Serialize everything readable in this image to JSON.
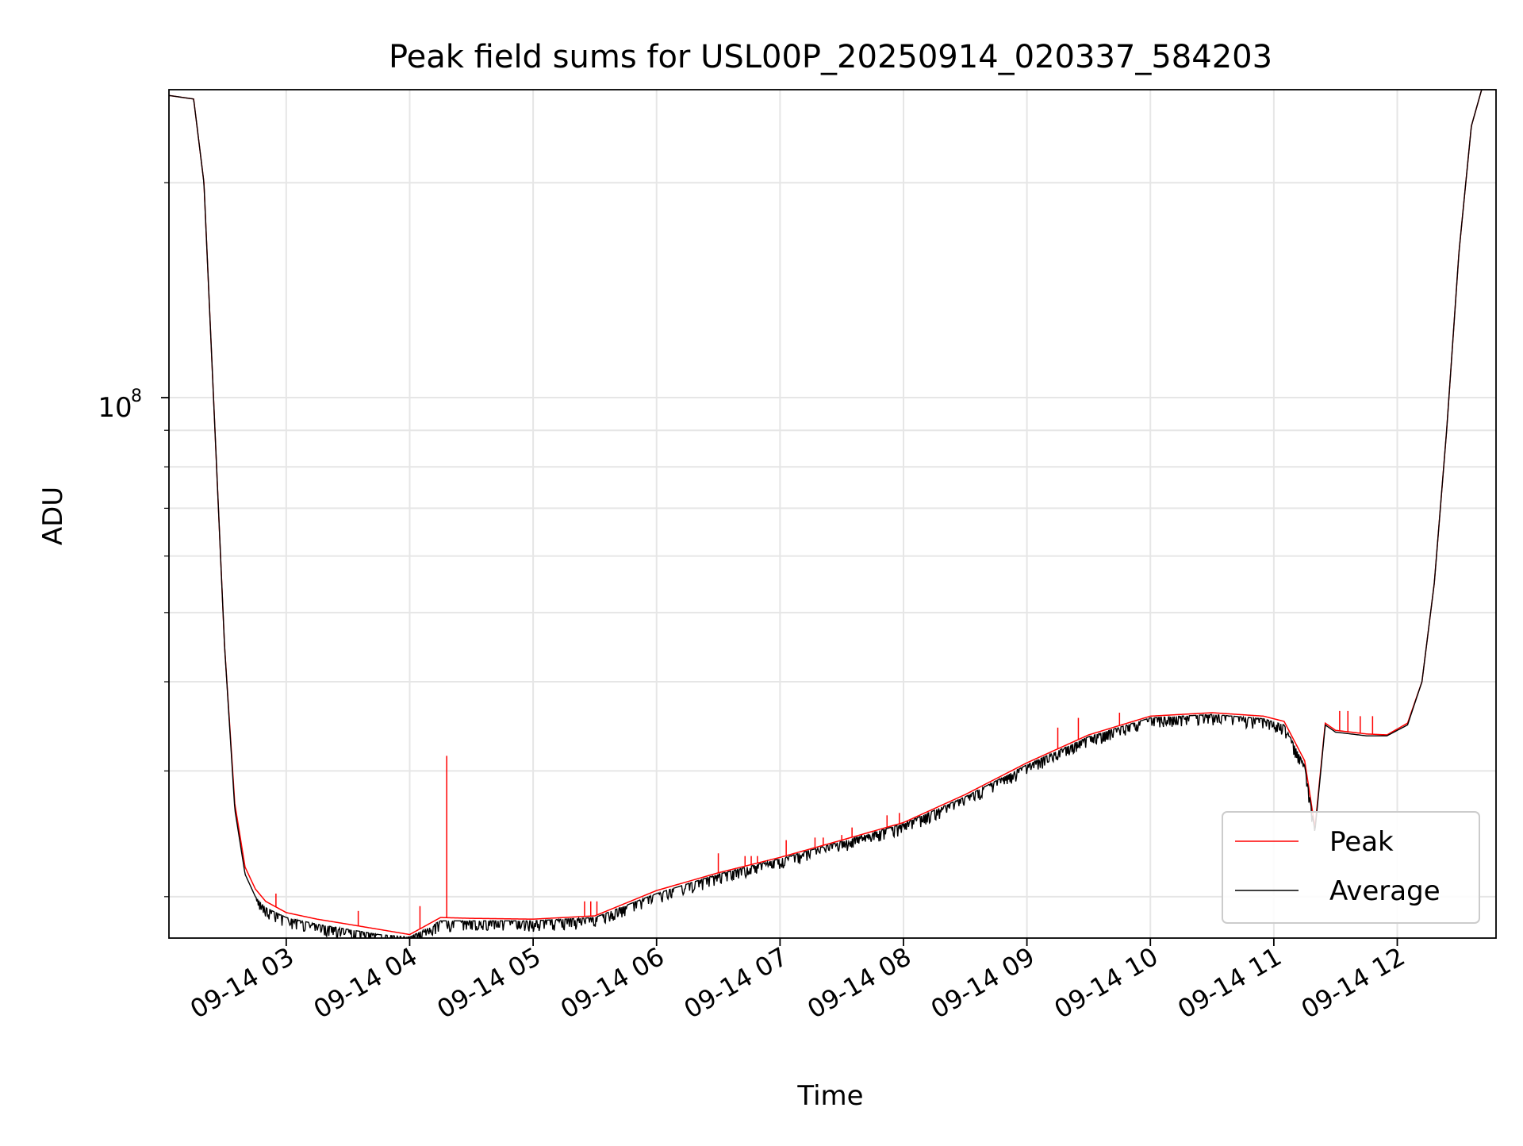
{
  "chart_data": {
    "type": "line",
    "title": "Peak field sums for USL00P_20250914_020337_584203",
    "xlabel": "Time",
    "ylabel": "ADU",
    "y_scale": "log",
    "ylim": [
      17500000,
      270000000
    ],
    "xlim": [
      "2025-09-14 02:03",
      "2025-09-14 12:48"
    ],
    "x_ticks": [
      "09-14 03",
      "09-14 04",
      "09-14 05",
      "09-14 06",
      "09-14 07",
      "09-14 08",
      "09-14 09",
      "09-14 10",
      "09-14 11",
      "09-14 12"
    ],
    "y_tick_major_label": "10",
    "y_tick_major_exp": "8",
    "y_tick_major_value": 100000000,
    "y_minor_ticks": [
      20000000,
      30000000,
      40000000,
      50000000,
      60000000,
      70000000,
      80000000,
      90000000,
      200000000
    ],
    "grid": true,
    "legend_position": "lower right",
    "series": [
      {
        "name": "Peak",
        "color": "#ff0000",
        "x": [
          "2025-09-14 02:03",
          "2025-09-14 02:15",
          "2025-09-14 02:20",
          "2025-09-14 02:25",
          "2025-09-14 02:30",
          "2025-09-14 02:35",
          "2025-09-14 02:40",
          "2025-09-14 02:45",
          "2025-09-14 02:50",
          "2025-09-14 03:00",
          "2025-09-14 03:15",
          "2025-09-14 03:30",
          "2025-09-14 03:45",
          "2025-09-14 04:00",
          "2025-09-14 04:15",
          "2025-09-14 04:30",
          "2025-09-14 05:00",
          "2025-09-14 05:30",
          "2025-09-14 06:00",
          "2025-09-14 06:30",
          "2025-09-14 07:00",
          "2025-09-14 07:30",
          "2025-09-14 08:00",
          "2025-09-14 08:30",
          "2025-09-14 09:00",
          "2025-09-14 09:30",
          "2025-09-14 10:00",
          "2025-09-14 10:30",
          "2025-09-14 10:55",
          "2025-09-14 11:05",
          "2025-09-14 11:15",
          "2025-09-14 11:20",
          "2025-09-14 11:25",
          "2025-09-14 11:30",
          "2025-09-14 11:45",
          "2025-09-14 11:55",
          "2025-09-14 12:05",
          "2025-09-14 12:12",
          "2025-09-14 12:18",
          "2025-09-14 12:24",
          "2025-09-14 12:30",
          "2025-09-14 12:36",
          "2025-09-14 12:41",
          "2025-09-14 12:48"
        ],
        "values": [
          265000000,
          262000000,
          200000000,
          95000000,
          45000000,
          27000000,
          22000000,
          20500000,
          19700000,
          19000000,
          18600000,
          18300000,
          18000000,
          17700000,
          18700000,
          18650000,
          18600000,
          18800000,
          20400000,
          21600000,
          22700000,
          24000000,
          25400000,
          27800000,
          30800000,
          33700000,
          35800000,
          36200000,
          35800000,
          35200000,
          31000000,
          25000000,
          35000000,
          34200000,
          33800000,
          33700000,
          35000000,
          40000000,
          55000000,
          90000000,
          160000000,
          240000000,
          270000000,
          270000000
        ],
        "spikes": [
          {
            "x": "2025-09-14 04:18",
            "value": 31500000
          },
          {
            "x": "2025-09-14 04:05",
            "value": 19400000
          },
          {
            "x": "2025-09-14 03:35",
            "value": 19100000
          },
          {
            "x": "2025-09-14 02:55",
            "value": 20200000
          },
          {
            "x": "2025-09-14 05:25",
            "value": 19700000
          },
          {
            "x": "2025-09-14 05:28",
            "value": 19700000
          },
          {
            "x": "2025-09-14 05:31",
            "value": 19700000
          },
          {
            "x": "2025-09-14 06:30",
            "value": 23000000
          },
          {
            "x": "2025-09-14 06:43",
            "value": 22800000
          },
          {
            "x": "2025-09-14 06:46",
            "value": 22800000
          },
          {
            "x": "2025-09-14 06:49",
            "value": 22800000
          },
          {
            "x": "2025-09-14 07:03",
            "value": 24000000
          },
          {
            "x": "2025-09-14 07:17",
            "value": 24200000
          },
          {
            "x": "2025-09-14 07:21",
            "value": 24200000
          },
          {
            "x": "2025-09-14 07:30",
            "value": 24400000
          },
          {
            "x": "2025-09-14 07:35",
            "value": 25000000
          },
          {
            "x": "2025-09-14 07:52",
            "value": 26000000
          },
          {
            "x": "2025-09-14 07:58",
            "value": 26200000
          },
          {
            "x": "2025-09-14 09:15",
            "value": 34500000
          },
          {
            "x": "2025-09-14 09:25",
            "value": 35600000
          },
          {
            "x": "2025-09-14 09:45",
            "value": 36200000
          },
          {
            "x": "2025-09-14 11:32",
            "value": 36400000
          },
          {
            "x": "2025-09-14 11:36",
            "value": 36400000
          },
          {
            "x": "2025-09-14 11:42",
            "value": 35800000
          },
          {
            "x": "2025-09-14 11:48",
            "value": 35800000
          }
        ]
      },
      {
        "name": "Average",
        "color": "#000000",
        "x": [
          "2025-09-14 02:03",
          "2025-09-14 02:15",
          "2025-09-14 02:20",
          "2025-09-14 02:25",
          "2025-09-14 02:30",
          "2025-09-14 02:35",
          "2025-09-14 02:40",
          "2025-09-14 02:45",
          "2025-09-14 02:50",
          "2025-09-14 03:00",
          "2025-09-14 03:15",
          "2025-09-14 03:30",
          "2025-09-14 03:45",
          "2025-09-14 04:00",
          "2025-09-14 04:15",
          "2025-09-14 04:30",
          "2025-09-14 05:00",
          "2025-09-14 05:30",
          "2025-09-14 06:00",
          "2025-09-14 06:30",
          "2025-09-14 07:00",
          "2025-09-14 07:30",
          "2025-09-14 08:00",
          "2025-09-14 08:30",
          "2025-09-14 09:00",
          "2025-09-14 09:30",
          "2025-09-14 10:00",
          "2025-09-14 10:30",
          "2025-09-14 10:55",
          "2025-09-14 11:05",
          "2025-09-14 11:15",
          "2025-09-14 11:20",
          "2025-09-14 11:25",
          "2025-09-14 11:30",
          "2025-09-14 11:45",
          "2025-09-14 11:55",
          "2025-09-14 12:05",
          "2025-09-14 12:12",
          "2025-09-14 12:18",
          "2025-09-14 12:24",
          "2025-09-14 12:30",
          "2025-09-14 12:36",
          "2025-09-14 12:41",
          "2025-09-14 12:48"
        ],
        "values": [
          265000000,
          262000000,
          200000000,
          95000000,
          45000000,
          26500000,
          21500000,
          20000000,
          19300000,
          18700000,
          18300000,
          18000000,
          17700000,
          17550000,
          18500000,
          18500000,
          18500000,
          18700000,
          20200000,
          21500000,
          22600000,
          23900000,
          25300000,
          27600000,
          30600000,
          33500000,
          35600000,
          36000000,
          35500000,
          34800000,
          30500000,
          24700000,
          34800000,
          34000000,
          33600000,
          33600000,
          34800000,
          40000000,
          55000000,
          90000000,
          160000000,
          240000000,
          270000000,
          270000000
        ],
        "noise_ranges": [
          {
            "from": "2025-09-14 02:45",
            "to": "2025-09-14 04:10"
          },
          {
            "from": "2025-09-14 04:10",
            "to": "2025-09-14 05:40"
          },
          {
            "from": "2025-09-14 05:40",
            "to": "2025-09-14 09:10"
          },
          {
            "from": "2025-09-14 09:10",
            "to": "2025-09-14 11:20"
          }
        ]
      }
    ]
  }
}
